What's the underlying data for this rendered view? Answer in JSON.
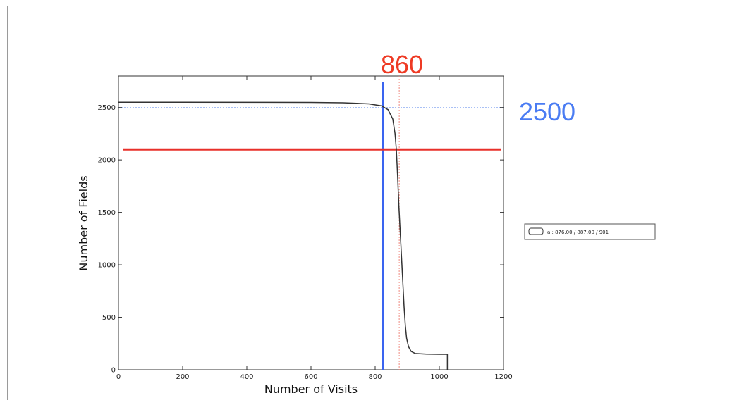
{
  "chart_data": {
    "type": "line",
    "xlabel": "Number of Visits",
    "ylabel": "Number of Fields",
    "xlim": [
      0,
      1200
    ],
    "ylim": [
      0,
      2800
    ],
    "x_ticks": [
      "0",
      "200",
      "400",
      "600",
      "800",
      "1000",
      "1200"
    ],
    "y_ticks": [
      "0",
      "500",
      "1000",
      "1500",
      "2000",
      "2500"
    ],
    "x_tick_values": [
      0,
      200,
      400,
      600,
      800,
      1000,
      1200
    ],
    "y_tick_values": [
      0,
      500,
      1000,
      1500,
      2000,
      2500
    ],
    "series": [
      {
        "name": "a : 876.00 / 887.00 / 901",
        "color": "#333333",
        "x": [
          0,
          600,
          700,
          780,
          820,
          840,
          855,
          862,
          866,
          870,
          874,
          880,
          886,
          890,
          894,
          898,
          904,
          912,
          925,
          960,
          1000,
          1025,
          1025
        ],
        "y": [
          2550,
          2548,
          2545,
          2535,
          2515,
          2480,
          2390,
          2250,
          2100,
          1850,
          1550,
          1200,
          850,
          600,
          420,
          300,
          220,
          175,
          155,
          150,
          148,
          148,
          0
        ]
      }
    ],
    "reference_lines": [
      {
        "orientation": "vertical",
        "value": 825,
        "color": "#3a64f0",
        "style": "solid"
      },
      {
        "orientation": "vertical",
        "value": 875,
        "color": "#f08a80",
        "style": "dotted"
      },
      {
        "orientation": "horizontal",
        "value": 2500,
        "color": "#9db8f4",
        "style": "dotted"
      },
      {
        "orientation": "horizontal",
        "value": 2100,
        "color": "#e8302a",
        "style": "solid"
      }
    ],
    "annotations": [
      {
        "text": "860",
        "color": "#ee3a24"
      },
      {
        "text": "2500",
        "color": "#4a7cf3"
      }
    ],
    "legend_label": "a : 876.00 / 887.00 / 901",
    "legend_position": "right"
  }
}
